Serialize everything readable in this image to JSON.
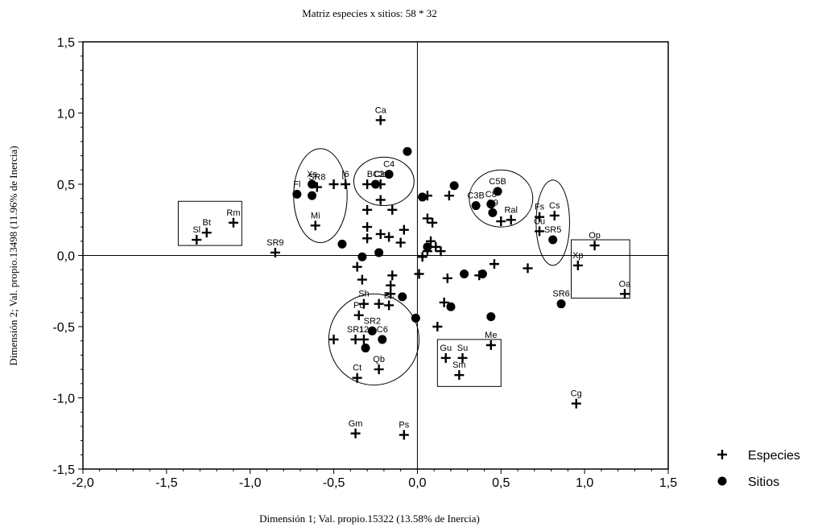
{
  "chart_data": {
    "type": "scatter",
    "title": "Matriz especies x sitios: 58 * 32",
    "xlabel": "Dimensión 1; Val. propio.15322 (13.58% de Inercia)",
    "ylabel": "Dimensión 2; Val. propio.13498 (11.96% de Inercia)",
    "xlim": [
      -2.0,
      1.5
    ],
    "ylim": [
      -1.5,
      1.5
    ],
    "x_ticks": [
      -2.0,
      -1.5,
      -1.0,
      -0.5,
      0.0,
      0.5,
      1.0,
      1.5
    ],
    "y_ticks": [
      -1.5,
      -1.0,
      -0.5,
      0.0,
      0.5,
      1.0,
      1.5
    ],
    "x_tick_labels": [
      "-2,0",
      "-1,5",
      "-1,0",
      "-0,5",
      "0,0",
      "0,5",
      "1,0",
      "1,5"
    ],
    "y_tick_labels": [
      "-1,5",
      "-1,0",
      "-0,5",
      "0,0",
      "0,5",
      "1,0",
      "1,5"
    ],
    "grid": false,
    "reference_lines": {
      "x": 0,
      "y": 0
    },
    "legend_position": "right-bottom",
    "series": [
      {
        "name": "Especies",
        "marker": "plus",
        "points": [
          {
            "x": -0.22,
            "y": 0.95,
            "label": "Ca"
          },
          {
            "x": -0.6,
            "y": 0.48,
            "label": "SR8"
          },
          {
            "x": -0.5,
            "y": 0.5,
            "label": ""
          },
          {
            "x": -0.61,
            "y": 0.21,
            "label": "Mi"
          },
          {
            "x": -0.43,
            "y": 0.5,
            "label": "[6"
          },
          {
            "x": -0.3,
            "y": 0.5,
            "label": ""
          },
          {
            "x": -0.22,
            "y": 0.5,
            "label": "Clc"
          },
          {
            "x": -0.22,
            "y": 0.39,
            "label": ""
          },
          {
            "x": -0.3,
            "y": 0.32,
            "label": ""
          },
          {
            "x": -0.15,
            "y": 0.32,
            "label": ""
          },
          {
            "x": -0.3,
            "y": 0.2,
            "label": ""
          },
          {
            "x": -0.22,
            "y": 0.15,
            "label": ""
          },
          {
            "x": -0.08,
            "y": 0.18,
            "label": ""
          },
          {
            "x": -0.3,
            "y": 0.12,
            "label": ""
          },
          {
            "x": -0.17,
            "y": 0.13,
            "label": ""
          },
          {
            "x": -0.1,
            "y": 0.09,
            "label": ""
          },
          {
            "x": -0.36,
            "y": -0.08,
            "label": ""
          },
          {
            "x": -0.33,
            "y": -0.17,
            "label": ""
          },
          {
            "x": -0.15,
            "y": -0.14,
            "label": ""
          },
          {
            "x": -0.16,
            "y": -0.21,
            "label": ""
          },
          {
            "x": -0.16,
            "y": -0.27,
            "label": ""
          },
          {
            "x": -0.32,
            "y": -0.34,
            "label": "Sh"
          },
          {
            "x": -0.23,
            "y": -0.34,
            "label": ""
          },
          {
            "x": -0.35,
            "y": -0.42,
            "label": "Po"
          },
          {
            "x": -0.17,
            "y": -0.35,
            "label": "Ec"
          },
          {
            "x": -0.37,
            "y": -0.59,
            "label": "SR1"
          },
          {
            "x": -0.32,
            "y": -0.59,
            "label": "12"
          },
          {
            "x": -0.5,
            "y": -0.59,
            "label": ""
          },
          {
            "x": -0.36,
            "y": -0.86,
            "label": "Ct"
          },
          {
            "x": -0.23,
            "y": -0.8,
            "label": "Qb"
          },
          {
            "x": -0.37,
            "y": -1.25,
            "label": "Gm"
          },
          {
            "x": -0.08,
            "y": -1.26,
            "label": "Ps"
          },
          {
            "x": -1.1,
            "y": 0.23,
            "label": "Rm"
          },
          {
            "x": -1.26,
            "y": 0.16,
            "label": "Bt"
          },
          {
            "x": -1.32,
            "y": 0.11,
            "label": "Sl"
          },
          {
            "x": -0.85,
            "y": 0.02,
            "label": "SR9"
          },
          {
            "x": 0.06,
            "y": 0.42,
            "label": ""
          },
          {
            "x": 0.19,
            "y": 0.42,
            "label": ""
          },
          {
            "x": 0.06,
            "y": 0.26,
            "label": ""
          },
          {
            "x": 0.09,
            "y": 0.23,
            "label": ""
          },
          {
            "x": 0.08,
            "y": 0.1,
            "label": ""
          },
          {
            "x": 0.11,
            "y": 0.06,
            "label": ""
          },
          {
            "x": 0.14,
            "y": 0.03,
            "label": ""
          },
          {
            "x": 0.06,
            "y": 0.03,
            "label": ""
          },
          {
            "x": 0.03,
            "y": -0.01,
            "label": ""
          },
          {
            "x": 0.01,
            "y": -0.13,
            "label": ""
          },
          {
            "x": 0.18,
            "y": -0.16,
            "label": ""
          },
          {
            "x": 0.37,
            "y": -0.14,
            "label": ""
          },
          {
            "x": 0.46,
            "y": -0.06,
            "label": ""
          },
          {
            "x": 0.66,
            "y": -0.09,
            "label": ""
          },
          {
            "x": 0.16,
            "y": -0.33,
            "label": ""
          },
          {
            "x": 0.12,
            "y": -0.5,
            "label": ""
          },
          {
            "x": 0.17,
            "y": -0.72,
            "label": "Gu"
          },
          {
            "x": 0.27,
            "y": -0.72,
            "label": "Su"
          },
          {
            "x": 0.25,
            "y": -0.84,
            "label": "Sm"
          },
          {
            "x": 0.44,
            "y": -0.63,
            "label": "Me"
          },
          {
            "x": 0.5,
            "y": 0.24,
            "label": ""
          },
          {
            "x": 0.56,
            "y": 0.25,
            "label": "Ral"
          },
          {
            "x": 0.73,
            "y": 0.27,
            "label": "Fs"
          },
          {
            "x": 0.82,
            "y": 0.28,
            "label": "Cs"
          },
          {
            "x": 0.73,
            "y": 0.17,
            "label": "Cu"
          },
          {
            "x": 1.06,
            "y": 0.07,
            "label": "Op"
          },
          {
            "x": 0.96,
            "y": -0.07,
            "label": "Xp"
          },
          {
            "x": 1.24,
            "y": -0.27,
            "label": "Oa"
          },
          {
            "x": 0.95,
            "y": -1.04,
            "label": "Cg"
          }
        ]
      },
      {
        "name": "Sitios",
        "marker": "dot",
        "points": [
          {
            "x": -0.72,
            "y": 0.43,
            "label": "Fl"
          },
          {
            "x": -0.63,
            "y": 0.42,
            "label": ""
          },
          {
            "x": -0.63,
            "y": 0.5,
            "label": "Xs"
          },
          {
            "x": -0.25,
            "y": 0.5,
            "label": "BC2"
          },
          {
            "x": -0.17,
            "y": 0.57,
            "label": "C4"
          },
          {
            "x": -0.06,
            "y": 0.73,
            "label": ""
          },
          {
            "x": -0.45,
            "y": 0.08,
            "label": ""
          },
          {
            "x": -0.33,
            "y": -0.01,
            "label": ""
          },
          {
            "x": -0.23,
            "y": 0.02,
            "label": ""
          },
          {
            "x": -0.09,
            "y": -0.29,
            "label": ""
          },
          {
            "x": -0.01,
            "y": -0.44,
            "label": ""
          },
          {
            "x": 0.03,
            "y": 0.41,
            "label": ""
          },
          {
            "x": 0.22,
            "y": 0.49,
            "label": ""
          },
          {
            "x": 0.06,
            "y": 0.06,
            "label": ""
          },
          {
            "x": 0.28,
            "y": -0.13,
            "label": ""
          },
          {
            "x": 0.39,
            "y": -0.13,
            "label": ""
          },
          {
            "x": 0.2,
            "y": -0.36,
            "label": ""
          },
          {
            "x": 0.44,
            "y": -0.43,
            "label": ""
          },
          {
            "x": -0.27,
            "y": -0.53,
            "label": "SR2"
          },
          {
            "x": -0.21,
            "y": -0.59,
            "label": "C6"
          },
          {
            "x": -0.31,
            "y": -0.65,
            "label": ""
          },
          {
            "x": 0.35,
            "y": 0.35,
            "label": "C3B"
          },
          {
            "x": 0.48,
            "y": 0.45,
            "label": "C5B"
          },
          {
            "x": 0.44,
            "y": 0.36,
            "label": "C8"
          },
          {
            "x": 0.45,
            "y": 0.3,
            "label": "C9"
          },
          {
            "x": 0.81,
            "y": 0.11,
            "label": "SR5"
          },
          {
            "x": 0.86,
            "y": -0.34,
            "label": "SR6"
          }
        ]
      }
    ],
    "groupings": [
      {
        "shape": "rectangle",
        "x": [
          -1.43,
          -1.05
        ],
        "y": [
          0.07,
          0.38
        ]
      },
      {
        "shape": "ellipse",
        "cx": -0.58,
        "cy": 0.42,
        "rx": 0.16,
        "ry": 0.33
      },
      {
        "shape": "ellipse",
        "cx": -0.2,
        "cy": 0.52,
        "rx": 0.18,
        "ry": 0.17
      },
      {
        "shape": "ellipse",
        "cx": 0.5,
        "cy": 0.4,
        "rx": 0.19,
        "ry": 0.2
      },
      {
        "shape": "ellipse",
        "cx": 0.81,
        "cy": 0.23,
        "rx": 0.1,
        "ry": 0.3
      },
      {
        "shape": "rectangle",
        "x": [
          0.92,
          1.27
        ],
        "y": [
          -0.3,
          0.11
        ]
      },
      {
        "shape": "ellipse",
        "cx": -0.26,
        "cy": -0.59,
        "rx": 0.27,
        "ry": 0.32
      },
      {
        "shape": "rectangle",
        "x": [
          0.12,
          0.5
        ],
        "y": [
          -0.92,
          -0.59
        ]
      }
    ]
  }
}
